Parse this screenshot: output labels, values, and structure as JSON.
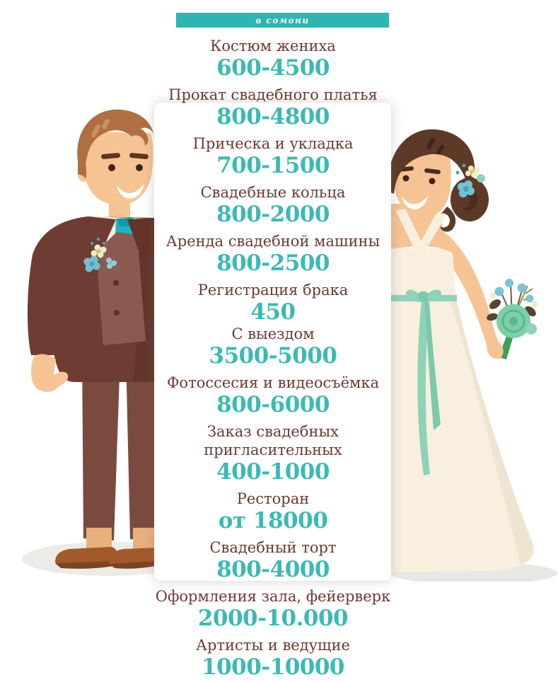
{
  "header": {
    "band_label": "в сомони"
  },
  "colors": {
    "band_teal": "#2db5b1",
    "price_teal": "#3cb9b5",
    "label_brown": "#6b3a32",
    "panel_white": "#ffffff"
  },
  "price_list": {
    "items": [
      {
        "label": "Костюм жениха",
        "price": "600-4500"
      },
      {
        "label": "Прокат свадебного платья",
        "price": "800-4800"
      },
      {
        "label": "Прическа и укладка",
        "price": "700-1500"
      },
      {
        "label": "Свадебные кольца",
        "price": "800-2000"
      },
      {
        "label": "Аренда свадебной машины",
        "price": "800-2500"
      },
      {
        "label": "Регистрация брака",
        "price": "450"
      },
      {
        "label": "С выездом",
        "price": "3500-5000"
      },
      {
        "label": "Фотоссесия и видеосъёмка",
        "price": "800-6000"
      },
      {
        "label": "Заказ свадебных",
        "label2": "пригласительных",
        "price": "400-1000"
      },
      {
        "label": "Ресторан",
        "price": "от 18000"
      },
      {
        "label": "Свадебный торт",
        "price": "800-4000"
      },
      {
        "label": "Оформления зала, фейерверк",
        "price": "2000-10.000"
      },
      {
        "label": "Артисты и ведущие",
        "price": "1000-10000"
      }
    ]
  },
  "illustrations": {
    "left": "groom in brown suit with teal tie and boutonniere",
    "right": "bride in cream dress with mint ribbon and bouquet"
  }
}
